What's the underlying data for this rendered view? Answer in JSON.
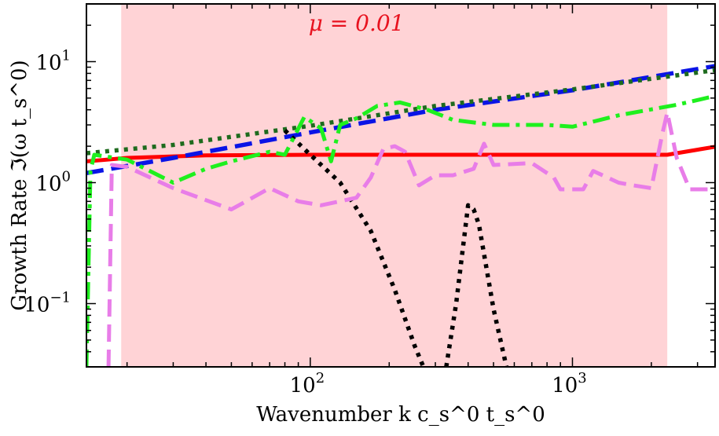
{
  "chart_data": {
    "type": "line",
    "title": "",
    "xlabel": "Wavenumber  k c_s^0 t_s^0",
    "ylabel": "Growth Rate  ℑ(ω t_s^0)",
    "xscale": "log",
    "yscale": "log",
    "xlim": [
      14,
      3500
    ],
    "ylim": [
      0.03,
      30
    ],
    "x_ticks": [
      {
        "value": 100,
        "base": "10",
        "exp": "2"
      },
      {
        "value": 1000,
        "base": "10",
        "exp": "3"
      }
    ],
    "y_ticks": [
      {
        "value": 0.1,
        "base": "10",
        "exp": "−1"
      },
      {
        "value": 1,
        "base": "10",
        "exp": "0"
      },
      {
        "value": 10,
        "base": "10",
        "exp": "1"
      }
    ],
    "shaded_region": {
      "x_from": 19,
      "x_to": 2300,
      "color": "#ffd3d6"
    },
    "annotation": {
      "text": "μ = 0.01",
      "x": 150,
      "y": 18,
      "color": "#e8121f"
    },
    "series": [
      {
        "name": "red-solid",
        "color": "#ff0000",
        "dash": "solid",
        "width": 5,
        "points": [
          [
            14,
            1.5
          ],
          [
            20,
            1.6
          ],
          [
            40,
            1.68
          ],
          [
            100,
            1.7
          ],
          [
            500,
            1.7
          ],
          [
            2300,
            1.7
          ],
          [
            3500,
            1.98
          ]
        ]
      },
      {
        "name": "blue-dashed",
        "color": "#0a14e6",
        "dash": "dashed",
        "width": 5.5,
        "points": [
          [
            14,
            1.2
          ],
          [
            30,
            1.6
          ],
          [
            100,
            2.6
          ],
          [
            300,
            4.0
          ],
          [
            1000,
            5.8
          ],
          [
            3500,
            9.2
          ]
        ]
      },
      {
        "name": "darkgreen-dotted",
        "color": "#1e6b1e",
        "dash": "dotted",
        "width": 5.5,
        "points": [
          [
            14,
            1.75
          ],
          [
            30,
            2.05
          ],
          [
            100,
            2.95
          ],
          [
            300,
            4.3
          ],
          [
            1000,
            5.9
          ],
          [
            3500,
            8.5
          ]
        ]
      },
      {
        "name": "black-dotted",
        "color": "#000000",
        "dash": "dotted",
        "width": 5.5,
        "points": [
          [
            80,
            2.7
          ],
          [
            100,
            1.7
          ],
          [
            130,
            1.0
          ],
          [
            170,
            0.4
          ],
          [
            210,
            0.13
          ],
          [
            250,
            0.045
          ],
          [
            270,
            0.03
          ],
          [
            null,
            null
          ],
          [
            330,
            0.03
          ],
          [
            360,
            0.1
          ],
          [
            400,
            0.65
          ],
          [
            420,
            0.6
          ],
          [
            440,
            0.45
          ],
          [
            500,
            0.09
          ],
          [
            560,
            0.03
          ]
        ]
      },
      {
        "name": "green-dashdot",
        "color": "#1ef01e",
        "dash": "dashdot",
        "width": 5,
        "points": [
          [
            14,
            0.03
          ],
          [
            14.5,
            1.25
          ],
          [
            15,
            1.7
          ],
          [
            20,
            1.55
          ],
          [
            30,
            1.0
          ],
          [
            40,
            1.3
          ],
          [
            50,
            1.5
          ],
          [
            70,
            1.8
          ],
          [
            80,
            1.7
          ],
          [
            95,
            3.5
          ],
          [
            110,
            2.8
          ],
          [
            120,
            1.5
          ],
          [
            130,
            3.0
          ],
          [
            150,
            3.4
          ],
          [
            180,
            4.3
          ],
          [
            220,
            4.6
          ],
          [
            280,
            4.0
          ],
          [
            350,
            3.3
          ],
          [
            500,
            3.0
          ],
          [
            800,
            3.0
          ],
          [
            1000,
            2.9
          ],
          [
            1500,
            3.6
          ],
          [
            2500,
            4.4
          ],
          [
            3500,
            5.2
          ]
        ]
      },
      {
        "name": "violet-dashed",
        "color": "#e87de8",
        "dash": "dashed",
        "width": 5,
        "points": [
          [
            17,
            0.03
          ],
          [
            17.5,
            1.4
          ],
          [
            20,
            1.35
          ],
          [
            30,
            0.9
          ],
          [
            50,
            0.6
          ],
          [
            70,
            0.9
          ],
          [
            90,
            0.7
          ],
          [
            110,
            0.65
          ],
          [
            150,
            0.75
          ],
          [
            170,
            1.1
          ],
          [
            190,
            1.9
          ],
          [
            210,
            2.0
          ],
          [
            230,
            1.8
          ],
          [
            260,
            0.95
          ],
          [
            300,
            1.15
          ],
          [
            350,
            1.15
          ],
          [
            420,
            1.3
          ],
          [
            460,
            2.1
          ],
          [
            500,
            1.4
          ],
          [
            700,
            1.45
          ],
          [
            850,
            1.1
          ],
          [
            900,
            0.88
          ],
          [
            1100,
            0.88
          ],
          [
            1200,
            1.25
          ],
          [
            1500,
            1.0
          ],
          [
            1700,
            0.95
          ],
          [
            2000,
            0.9
          ],
          [
            2200,
            2.5
          ],
          [
            2300,
            3.8
          ],
          [
            2500,
            1.6
          ],
          [
            2800,
            0.88
          ],
          [
            3500,
            0.88
          ]
        ]
      }
    ]
  }
}
